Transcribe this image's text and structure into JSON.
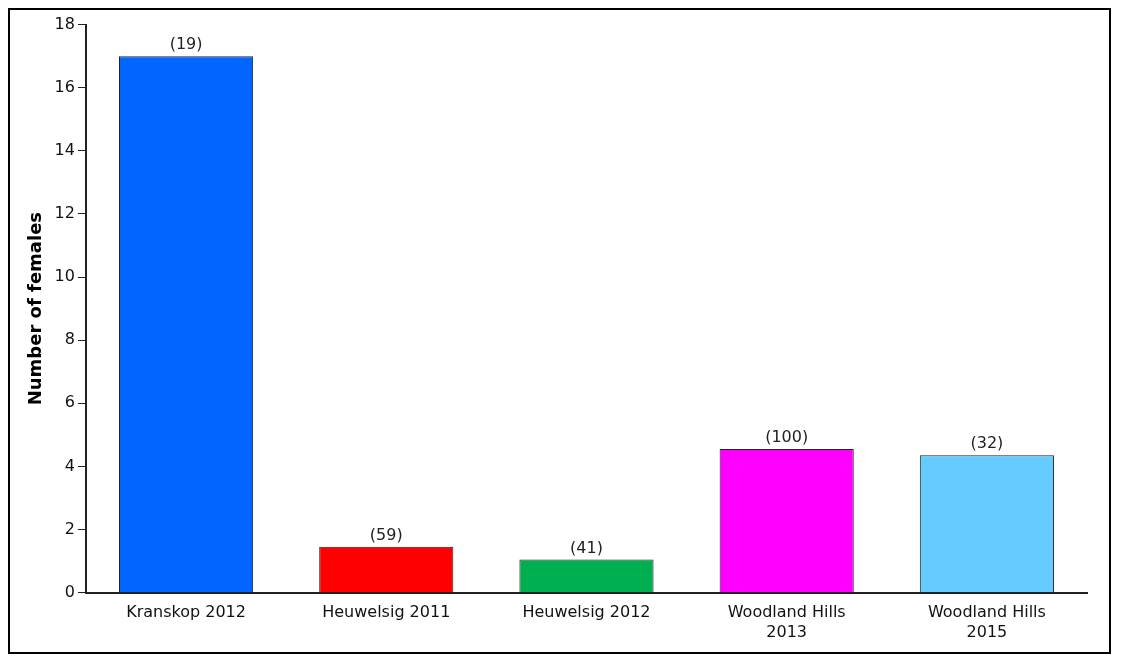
{
  "chart_data": {
    "type": "bar",
    "ylabel": "Number of females",
    "categories": [
      "Kranskop 2012",
      "Heuwelsig 2011",
      "Heuwelsig 2012",
      "Woodland Hills 2013",
      "Woodland Hills 2015"
    ],
    "values": [
      17,
      1.45,
      1.05,
      4.55,
      4.35
    ],
    "colors": [
      "#0066ff",
      "#ff0000",
      "#00b050",
      "#ff00ff",
      "#66ccff"
    ],
    "ylim": [
      0,
      18
    ],
    "yticks": [
      0,
      2,
      4,
      6,
      8,
      10,
      12,
      14,
      16,
      18
    ],
    "grid": false,
    "legend": false,
    "annotations": [
      {
        "text": "(19)",
        "x": "Kranskop 2012",
        "y": 17
      },
      {
        "text": "(59)",
        "x": "Heuwelsig 2011",
        "y": 1.45
      },
      {
        "text": "(41)",
        "x": "Heuwelsig 2012",
        "y": 1.05
      },
      {
        "text": "(100)",
        "x": "Woodland Hills 2013",
        "y": 4.55
      },
      {
        "text": "(32)",
        "x": "Woodland Hills 2015",
        "y": 4.35
      }
    ]
  }
}
